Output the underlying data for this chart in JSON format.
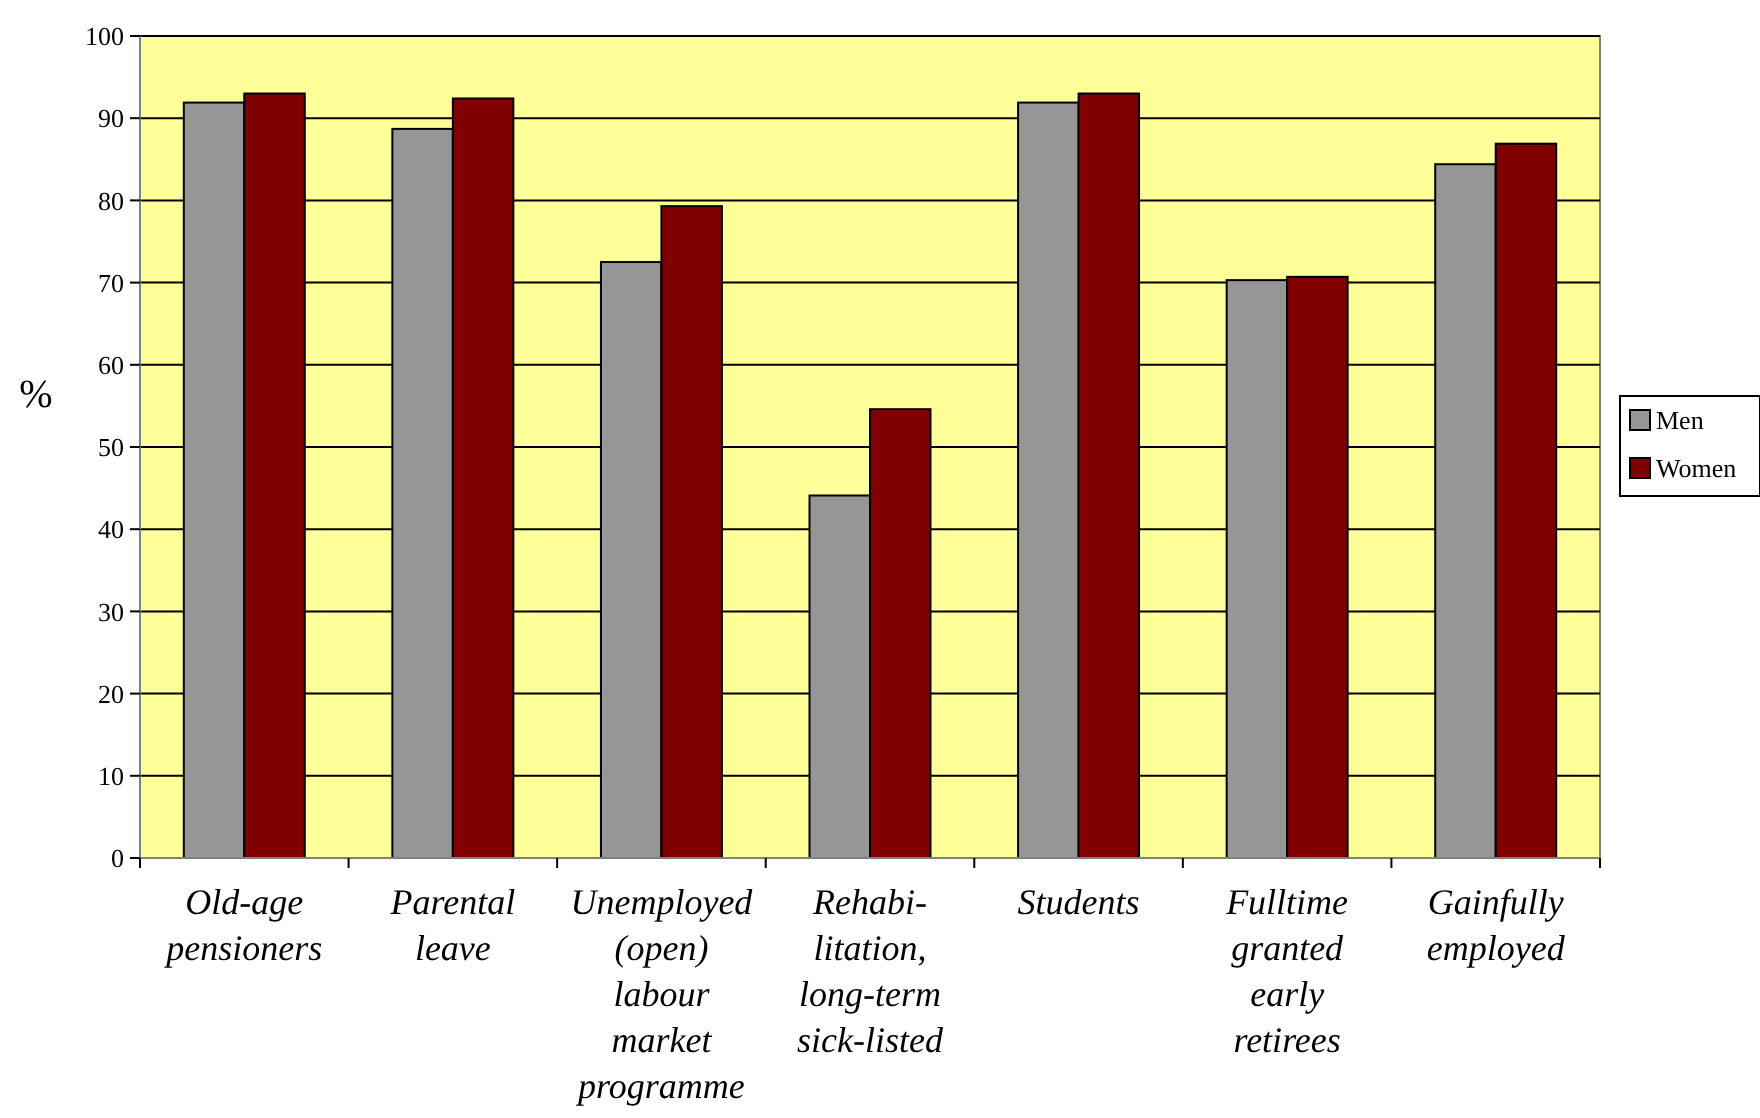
{
  "chart_data": {
    "type": "bar",
    "ylabel": "%",
    "categories": [
      "Old-age\npensioners",
      "Parental\nleave",
      "Unemployed\n(open)\nlabour\nmarket\nprogramme",
      "Rehabi-\nlitation,\nlong-term\nsick-listed",
      "Students",
      "Fulltime\ngranted\nearly\nretirees",
      "Gainfully\nemployed"
    ],
    "series": [
      {
        "name": "Men",
        "color": "#969696",
        "values": [
          91.9,
          88.7,
          72.5,
          44.1,
          91.9,
          70.3,
          84.4
        ]
      },
      {
        "name": "Women",
        "color": "#800000",
        "values": [
          93.0,
          92.4,
          79.3,
          54.6,
          93.0,
          70.7,
          86.9
        ]
      }
    ],
    "ylim": [
      0,
      100
    ],
    "yticks": [
      0,
      10,
      20,
      30,
      40,
      50,
      60,
      70,
      80,
      90,
      100
    ],
    "grid": "y",
    "legend": "right"
  }
}
